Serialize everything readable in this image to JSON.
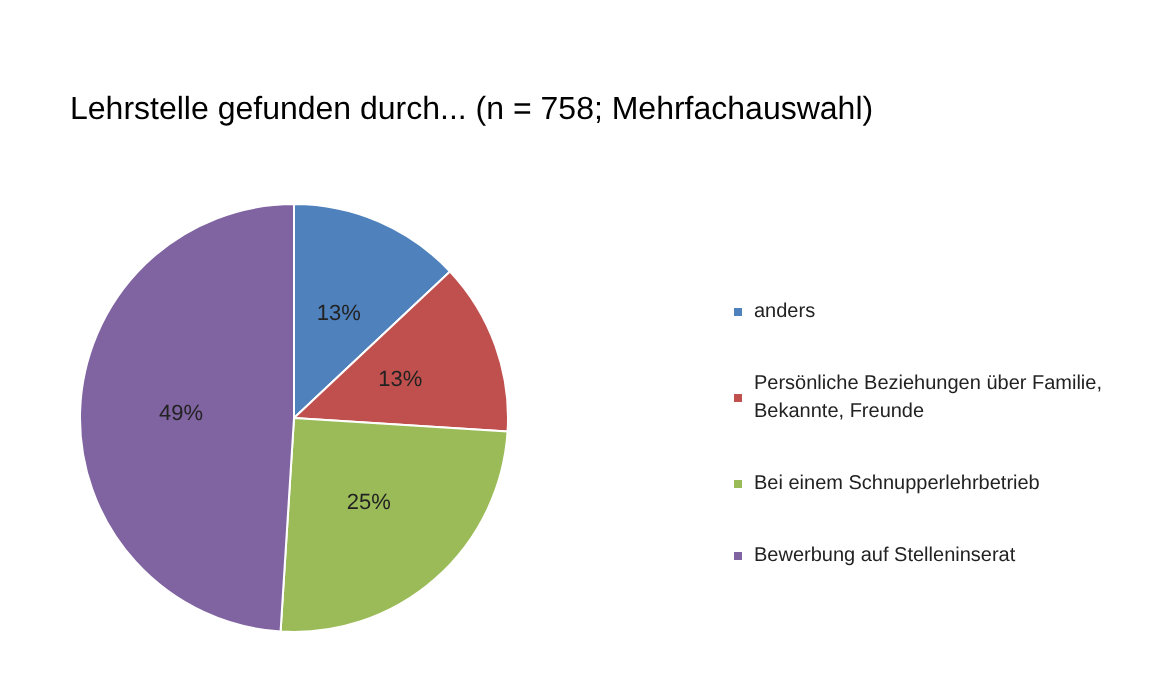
{
  "chart_data": {
    "type": "pie",
    "title": "Lehrstelle gefunden durch... (n = 758; Mehrfachauswahl)",
    "categories": [
      "anders",
      "Persönliche Beziehungen über Familie, Bekannte, Freunde",
      "Bei einem Schnupperlehrbetrieb",
      "Bewerbung auf Stelleninserat"
    ],
    "values": [
      13,
      13,
      25,
      49
    ],
    "colors": [
      "#4f81bd",
      "#c0504d",
      "#9bbb59",
      "#8064a2"
    ],
    "value_labels": [
      "13%",
      "13%",
      "25%",
      "49%"
    ],
    "legend": "right"
  }
}
